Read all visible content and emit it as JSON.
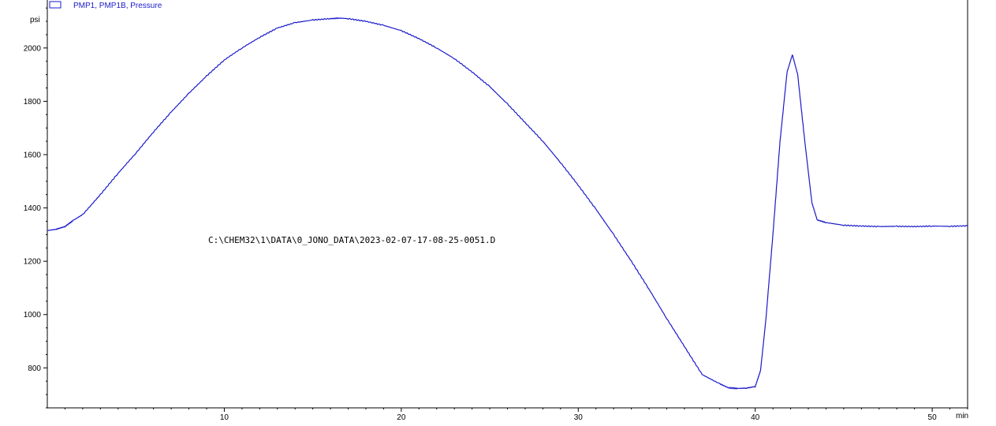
{
  "chart_data": {
    "type": "line",
    "legend": "PMP1, PMP1B, Pressure",
    "legend_position": "top-left",
    "ylabel": "psi",
    "xlabel": "min",
    "annotation": "C:\\CHEM32\\1\\DATA\\0_JONO_DATA\\2023-02-07-17-08-25-0051.D",
    "xlim": [
      0.0,
      52.0
    ],
    "ylim": [
      650,
      2180
    ],
    "xticks": [
      10,
      20,
      30,
      40,
      50
    ],
    "yticks": [
      800,
      1000,
      1200,
      1400,
      1600,
      1800,
      2000
    ],
    "grid": false,
    "colors": {
      "series": "#1a1acc",
      "axis": "#000000"
    },
    "series": [
      {
        "x": [
          0.0,
          0.5,
          1.0,
          1.5,
          2.0,
          3.0,
          4.0,
          5.0,
          6.0,
          7.0,
          8.0,
          9.0,
          10.0,
          11.0,
          12.0,
          13.0,
          14.0,
          15.0,
          16.0,
          16.5,
          17.0,
          18.0,
          19.0,
          20.0,
          21.0,
          22.0,
          23.0,
          24.0,
          25.0,
          26.0,
          27.0,
          28.0,
          29.0,
          30.0,
          31.0,
          32.0,
          33.0,
          34.0,
          35.0,
          36.0,
          37.0,
          38.0,
          38.5,
          39.0,
          39.5,
          40.0,
          40.3,
          40.6,
          41.0,
          41.4,
          41.8,
          42.1,
          42.4,
          42.8,
          43.2,
          43.5,
          44.0,
          45.0,
          46.0,
          47.0,
          48.0,
          49.0,
          50.0,
          51.0,
          52.0
        ],
        "y": [
          1315,
          1320,
          1330,
          1355,
          1375,
          1450,
          1530,
          1605,
          1685,
          1760,
          1830,
          1895,
          1955,
          2000,
          2040,
          2075,
          2095,
          2105,
          2110,
          2112,
          2110,
          2100,
          2085,
          2065,
          2035,
          2000,
          1960,
          1910,
          1855,
          1790,
          1720,
          1650,
          1570,
          1485,
          1395,
          1300,
          1200,
          1095,
          985,
          880,
          775,
          740,
          725,
          723,
          724,
          730,
          790,
          980,
          1300,
          1650,
          1910,
          1975,
          1900,
          1650,
          1420,
          1355,
          1345,
          1335,
          1332,
          1330,
          1331,
          1330,
          1332,
          1331,
          1333
        ]
      }
    ]
  }
}
